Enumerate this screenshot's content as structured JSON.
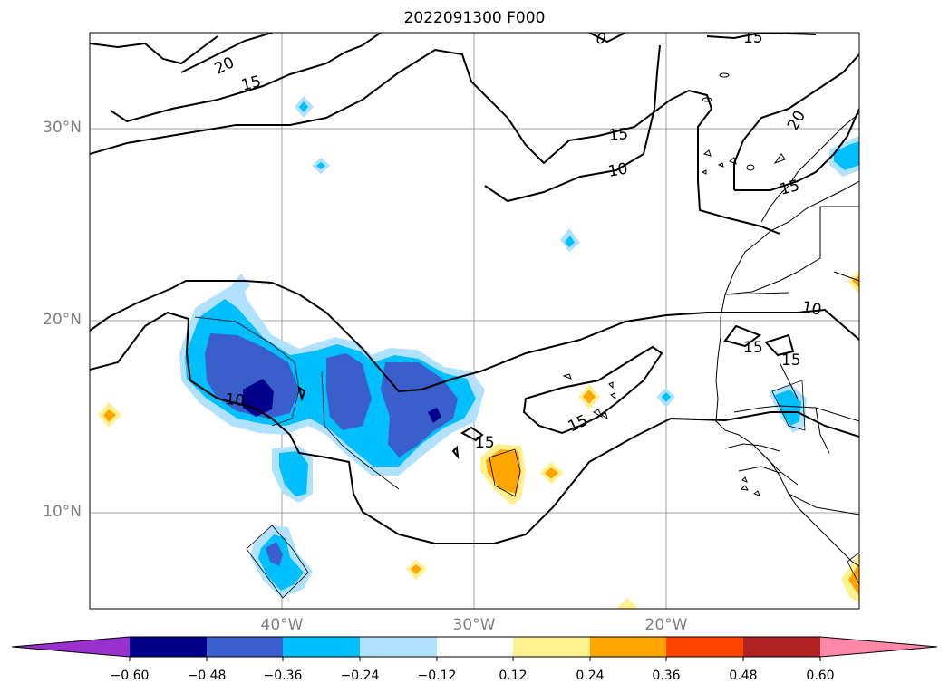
{
  "title": "2022091300 F000",
  "map": {
    "lat_labels": [
      "30°N",
      "20°N",
      "10°N"
    ],
    "lon_labels": [
      "40°W",
      "30°W",
      "20°W"
    ],
    "contour_labels": [
      "20",
      "15",
      "15",
      "0",
      "15",
      "20",
      "10",
      "15",
      "10",
      "15",
      "15",
      "10",
      "15",
      "15"
    ]
  },
  "colorbar": {
    "colors": [
      "#9932cc",
      "#00008b",
      "#3a5fcd",
      "#00bfff",
      "#b0e2ff",
      "#ffffff",
      "#fff08f",
      "#ffa500",
      "#ff4500",
      "#b22222",
      "#ff88aa"
    ],
    "ticks": [
      "−0.60",
      "−0.48",
      "−0.36",
      "−0.24",
      "−0.12",
      "0.12",
      "0.24",
      "0.36",
      "0.48",
      "0.60"
    ]
  }
}
